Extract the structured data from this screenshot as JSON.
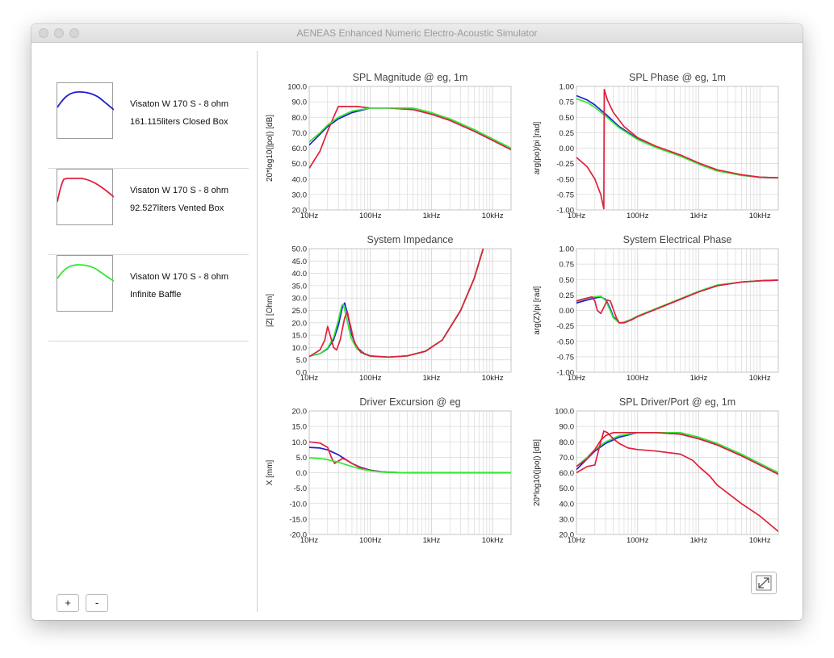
{
  "window": {
    "title": "AENEAS Enhanced Numeric Electro-Acoustic Simulator"
  },
  "simulations": [
    {
      "line1": "Visaton W 170 S - 8 ohm",
      "line2": "161.115liters Closed Box",
      "color": "#1f1fd0",
      "icon": "closed-box-response-thumbnail"
    },
    {
      "line1": "Visaton W 170 S - 8 ohm",
      "line2": "92.527liters Vented Box",
      "color": "#e0203c",
      "icon": "vented-box-response-thumbnail"
    },
    {
      "line1": "Visaton W 170 S - 8 ohm",
      "line2": "Infinite Baffle",
      "color": "#33e833",
      "icon": "infinite-baffle-response-thumbnail"
    }
  ],
  "buttons": {
    "add": "+",
    "remove": "-",
    "expand_icon": "expand-icon"
  },
  "colors": {
    "closed": "#1f1fd0",
    "vented": "#e0203c",
    "baffle": "#33e833",
    "grid": "#d9d9d9"
  },
  "chart_data": [
    {
      "id": "spl-magnitude",
      "type": "line",
      "title": "SPL Magnitude @ eg, 1m",
      "xlabel": "",
      "ylabel": "20*log10(|po|) [dB]",
      "x_scale": "log",
      "xlim": [
        10,
        20000
      ],
      "ylim": [
        20,
        100
      ],
      "x_ticks": [
        "10Hz",
        "100Hz",
        "1kHz",
        "10kHz"
      ],
      "y_ticks": [
        "20.0",
        "30.0",
        "40.0",
        "50.0",
        "60.0",
        "70.0",
        "80.0",
        "90.0",
        "100.0"
      ],
      "series": [
        {
          "color": "#1f1fd0",
          "x": [
            10,
            15,
            20,
            30,
            50,
            100,
            200,
            500,
            1000,
            2000,
            5000,
            10000,
            20000
          ],
          "y": [
            62,
            69,
            74,
            79,
            83,
            86,
            86,
            85,
            82,
            78,
            71,
            65,
            59
          ]
        },
        {
          "color": "#e0203c",
          "x": [
            10,
            15,
            20,
            25,
            30,
            40,
            60,
            100,
            200,
            500,
            1000,
            2000,
            5000,
            10000,
            20000
          ],
          "y": [
            47,
            58,
            71,
            80,
            87,
            87,
            87,
            86,
            86,
            85,
            82,
            78,
            71,
            65,
            59
          ]
        },
        {
          "color": "#33e833",
          "x": [
            10,
            15,
            20,
            30,
            50,
            100,
            200,
            500,
            1000,
            2000,
            5000,
            10000,
            20000
          ],
          "y": [
            64,
            70,
            75,
            80,
            84,
            86,
            86,
            86,
            83,
            79,
            72,
            66,
            60
          ]
        }
      ]
    },
    {
      "id": "spl-phase",
      "type": "line",
      "title": "SPL Phase @ eg, 1m",
      "xlabel": "",
      "ylabel": "arg(po)/pi [rad]",
      "x_scale": "log",
      "xlim": [
        10,
        20000
      ],
      "ylim": [
        -1,
        1
      ],
      "x_ticks": [
        "10Hz",
        "100Hz",
        "1kHz",
        "10kHz"
      ],
      "y_ticks": [
        "-1.00",
        "-0.75",
        "-0.50",
        "-0.25",
        "0.00",
        "0.25",
        "0.50",
        "0.75",
        "1.00"
      ],
      "series": [
        {
          "color": "#1f1fd0",
          "x": [
            10,
            15,
            20,
            30,
            50,
            100,
            200,
            500,
            1000,
            2000,
            5000,
            10000,
            20000
          ],
          "y": [
            0.85,
            0.78,
            0.7,
            0.55,
            0.35,
            0.15,
            0.02,
            -0.12,
            -0.25,
            -0.36,
            -0.44,
            -0.47,
            -0.48
          ]
        },
        {
          "color": "#33e833",
          "x": [
            10,
            15,
            20,
            30,
            50,
            100,
            200,
            500,
            1000,
            2000,
            5000,
            10000,
            20000
          ],
          "y": [
            0.8,
            0.74,
            0.66,
            0.52,
            0.33,
            0.14,
            0.01,
            -0.13,
            -0.26,
            -0.37,
            -0.44,
            -0.47,
            -0.48
          ]
        },
        {
          "color": "#e0203c",
          "x": [
            10,
            15,
            20,
            25,
            28,
            28.5,
            32,
            40,
            60,
            100,
            200,
            500,
            1000,
            2000,
            5000,
            10000,
            20000
          ],
          "y": [
            -0.15,
            -0.3,
            -0.5,
            -0.75,
            -0.98,
            0.95,
            0.78,
            0.58,
            0.35,
            0.17,
            0.03,
            -0.11,
            -0.24,
            -0.35,
            -0.43,
            -0.47,
            -0.48
          ]
        }
      ]
    },
    {
      "id": "system-impedance",
      "type": "line",
      "title": "System Impedance",
      "xlabel": "",
      "ylabel": "|Z| [Ohm]",
      "x_scale": "log",
      "xlim": [
        10,
        20000
      ],
      "ylim": [
        0,
        50
      ],
      "x_ticks": [
        "10Hz",
        "100Hz",
        "1kHz",
        "10kHz"
      ],
      "y_ticks": [
        "0.0",
        "5.0",
        "10.0",
        "15.0",
        "20.0",
        "25.0",
        "30.0",
        "35.0",
        "40.0",
        "45.0",
        "50.0"
      ],
      "series": [
        {
          "color": "#1f1fd0",
          "x": [
            10,
            15,
            20,
            25,
            30,
            35,
            38,
            42,
            50,
            60,
            80,
            100,
            200,
            400,
            800,
            1500,
            3000,
            5000,
            7000
          ],
          "y": [
            6.5,
            7.5,
            9.5,
            13,
            19,
            26.5,
            28,
            24,
            15,
            10,
            7.5,
            6.6,
            6.1,
            6.6,
            8.5,
            13,
            25,
            38,
            50
          ]
        },
        {
          "color": "#33e833",
          "x": [
            10,
            15,
            20,
            25,
            30,
            34,
            36,
            40,
            48,
            60,
            80,
            100,
            200,
            400,
            800,
            1500,
            3000,
            5000,
            7000
          ],
          "y": [
            6.5,
            7.5,
            9.8,
            14,
            21,
            27,
            27.5,
            23,
            14,
            9.5,
            7.3,
            6.5,
            6.1,
            6.6,
            8.5,
            13,
            25,
            38,
            50
          ]
        },
        {
          "color": "#e0203c",
          "x": [
            10,
            15,
            18,
            20,
            22,
            25,
            28,
            32,
            38,
            42,
            46,
            55,
            70,
            100,
            200,
            400,
            800,
            1500,
            3000,
            5000,
            7000
          ],
          "y": [
            6.3,
            9,
            13,
            18.5,
            15,
            10,
            9,
            13,
            22,
            24.5,
            20,
            12,
            8,
            6.5,
            6.1,
            6.6,
            8.5,
            13,
            25,
            38,
            50
          ]
        }
      ]
    },
    {
      "id": "system-electrical-phase",
      "type": "line",
      "title": "System Electrical Phase",
      "xlabel": "",
      "ylabel": "arg(Z)/pi [rad]",
      "x_scale": "log",
      "xlim": [
        10,
        20000
      ],
      "ylim": [
        -1,
        1
      ],
      "x_ticks": [
        "10Hz",
        "100Hz",
        "1kHz",
        "10kHz"
      ],
      "y_ticks": [
        "-1.00",
        "-0.75",
        "-0.50",
        "-0.25",
        "0.00",
        "0.25",
        "0.50",
        "0.75",
        "1.00"
      ],
      "series": [
        {
          "color": "#1f1fd0",
          "x": [
            10,
            15,
            20,
            25,
            30,
            35,
            40,
            50,
            60,
            80,
            100,
            200,
            500,
            1000,
            2000,
            5000,
            10000,
            20000
          ],
          "y": [
            0.12,
            0.17,
            0.2,
            0.22,
            0.18,
            0.05,
            -0.1,
            -0.2,
            -0.2,
            -0.15,
            -0.1,
            0.02,
            0.18,
            0.3,
            0.4,
            0.46,
            0.48,
            0.49
          ]
        },
        {
          "color": "#33e833",
          "x": [
            10,
            15,
            20,
            25,
            30,
            35,
            40,
            50,
            60,
            80,
            100,
            200,
            500,
            1000,
            2000,
            5000,
            10000,
            20000
          ],
          "y": [
            0.16,
            0.2,
            0.22,
            0.23,
            0.16,
            0.02,
            -0.12,
            -0.2,
            -0.19,
            -0.14,
            -0.09,
            0.03,
            0.19,
            0.31,
            0.41,
            0.46,
            0.48,
            0.49
          ]
        },
        {
          "color": "#e0203c",
          "x": [
            10,
            15,
            18,
            20,
            22,
            25,
            28,
            32,
            36,
            40,
            45,
            50,
            60,
            80,
            100,
            200,
            500,
            1000,
            2000,
            5000,
            10000,
            20000
          ],
          "y": [
            0.15,
            0.2,
            0.22,
            0.15,
            0.0,
            -0.05,
            0.05,
            0.17,
            0.15,
            0.02,
            -0.12,
            -0.2,
            -0.2,
            -0.15,
            -0.1,
            0.02,
            0.18,
            0.3,
            0.4,
            0.46,
            0.48,
            0.49
          ]
        }
      ]
    },
    {
      "id": "driver-excursion",
      "type": "line",
      "title": "Driver Excursion @ eg",
      "xlabel": "",
      "ylabel": "X [mm]",
      "x_scale": "log",
      "xlim": [
        10,
        20000
      ],
      "ylim": [
        -20,
        20
      ],
      "x_ticks": [
        "10Hz",
        "100Hz",
        "1kHz",
        "10kHz"
      ],
      "y_ticks": [
        "-20.0",
        "-15.0",
        "-10.0",
        "-5.0",
        "0.0",
        "5.0",
        "10.0",
        "15.0",
        "20.0"
      ],
      "series": [
        {
          "color": "#1f1fd0",
          "x": [
            10,
            15,
            20,
            30,
            40,
            50,
            70,
            100,
            150,
            200,
            300,
            1000,
            20000
          ],
          "y": [
            8.2,
            8,
            7.4,
            5.8,
            4.2,
            3,
            1.7,
            0.8,
            0.35,
            0.15,
            0.05,
            0,
            0
          ]
        },
        {
          "color": "#e0203c",
          "x": [
            10,
            15,
            20,
            23,
            26,
            30,
            35,
            40,
            50,
            70,
            100,
            150,
            200,
            300,
            1000,
            20000
          ],
          "y": [
            10,
            9.6,
            8.2,
            5,
            3,
            3.8,
            4.6,
            4.2,
            3,
            1.5,
            0.7,
            0.3,
            0.12,
            0.04,
            0,
            0
          ]
        },
        {
          "color": "#33e833",
          "x": [
            10,
            15,
            20,
            30,
            40,
            50,
            70,
            100,
            150,
            200,
            300,
            1000,
            20000
          ],
          "y": [
            4.8,
            4.6,
            4.2,
            3.4,
            2.6,
            2,
            1.2,
            0.6,
            0.25,
            0.1,
            0.03,
            0,
            0
          ]
        }
      ]
    },
    {
      "id": "spl-driver-port",
      "type": "line",
      "title": "SPL Driver/Port @ eg, 1m",
      "xlabel": "",
      "ylabel": "20*log10(|po|) [dB]",
      "x_scale": "log",
      "xlim": [
        10,
        20000
      ],
      "ylim": [
        20,
        100
      ],
      "x_ticks": [
        "10Hz",
        "100Hz",
        "1kHz",
        "10kHz"
      ],
      "y_ticks": [
        "20.0",
        "30.0",
        "40.0",
        "50.0",
        "60.0",
        "70.0",
        "80.0",
        "90.0",
        "100.0"
      ],
      "series": [
        {
          "color": "#1f1fd0",
          "x": [
            10,
            15,
            20,
            30,
            50,
            100,
            200,
            500,
            1000,
            2000,
            5000,
            10000,
            20000
          ],
          "y": [
            62,
            69,
            74,
            79,
            83,
            86,
            86,
            85,
            82,
            78,
            71,
            65,
            59
          ]
        },
        {
          "color": "#33e833",
          "x": [
            10,
            15,
            20,
            30,
            50,
            100,
            200,
            500,
            1000,
            2000,
            5000,
            10000,
            20000
          ],
          "y": [
            64,
            70,
            75,
            80,
            84,
            86,
            86,
            86,
            83,
            79,
            72,
            66,
            60
          ]
        },
        {
          "color": "#e0203c",
          "x": [
            10,
            15,
            20,
            25,
            28,
            32,
            40,
            50,
            70,
            100,
            200,
            500,
            800,
            1000,
            1500,
            2000,
            5000,
            10000,
            20000
          ],
          "y": [
            60,
            64,
            65,
            80,
            87,
            86,
            82,
            79,
            76,
            75,
            74,
            72,
            68,
            64,
            58,
            52,
            40,
            32,
            22
          ]
        },
        {
          "color": "#e0203c",
          "x": [
            10,
            15,
            20,
            25,
            30,
            40,
            50,
            70,
            100,
            200,
            500,
            1000,
            2000,
            5000,
            10000,
            20000
          ],
          "y": [
            64,
            69,
            75,
            81,
            84,
            86,
            86,
            86,
            86,
            86,
            85,
            82,
            78,
            71,
            65,
            59
          ]
        }
      ]
    }
  ]
}
